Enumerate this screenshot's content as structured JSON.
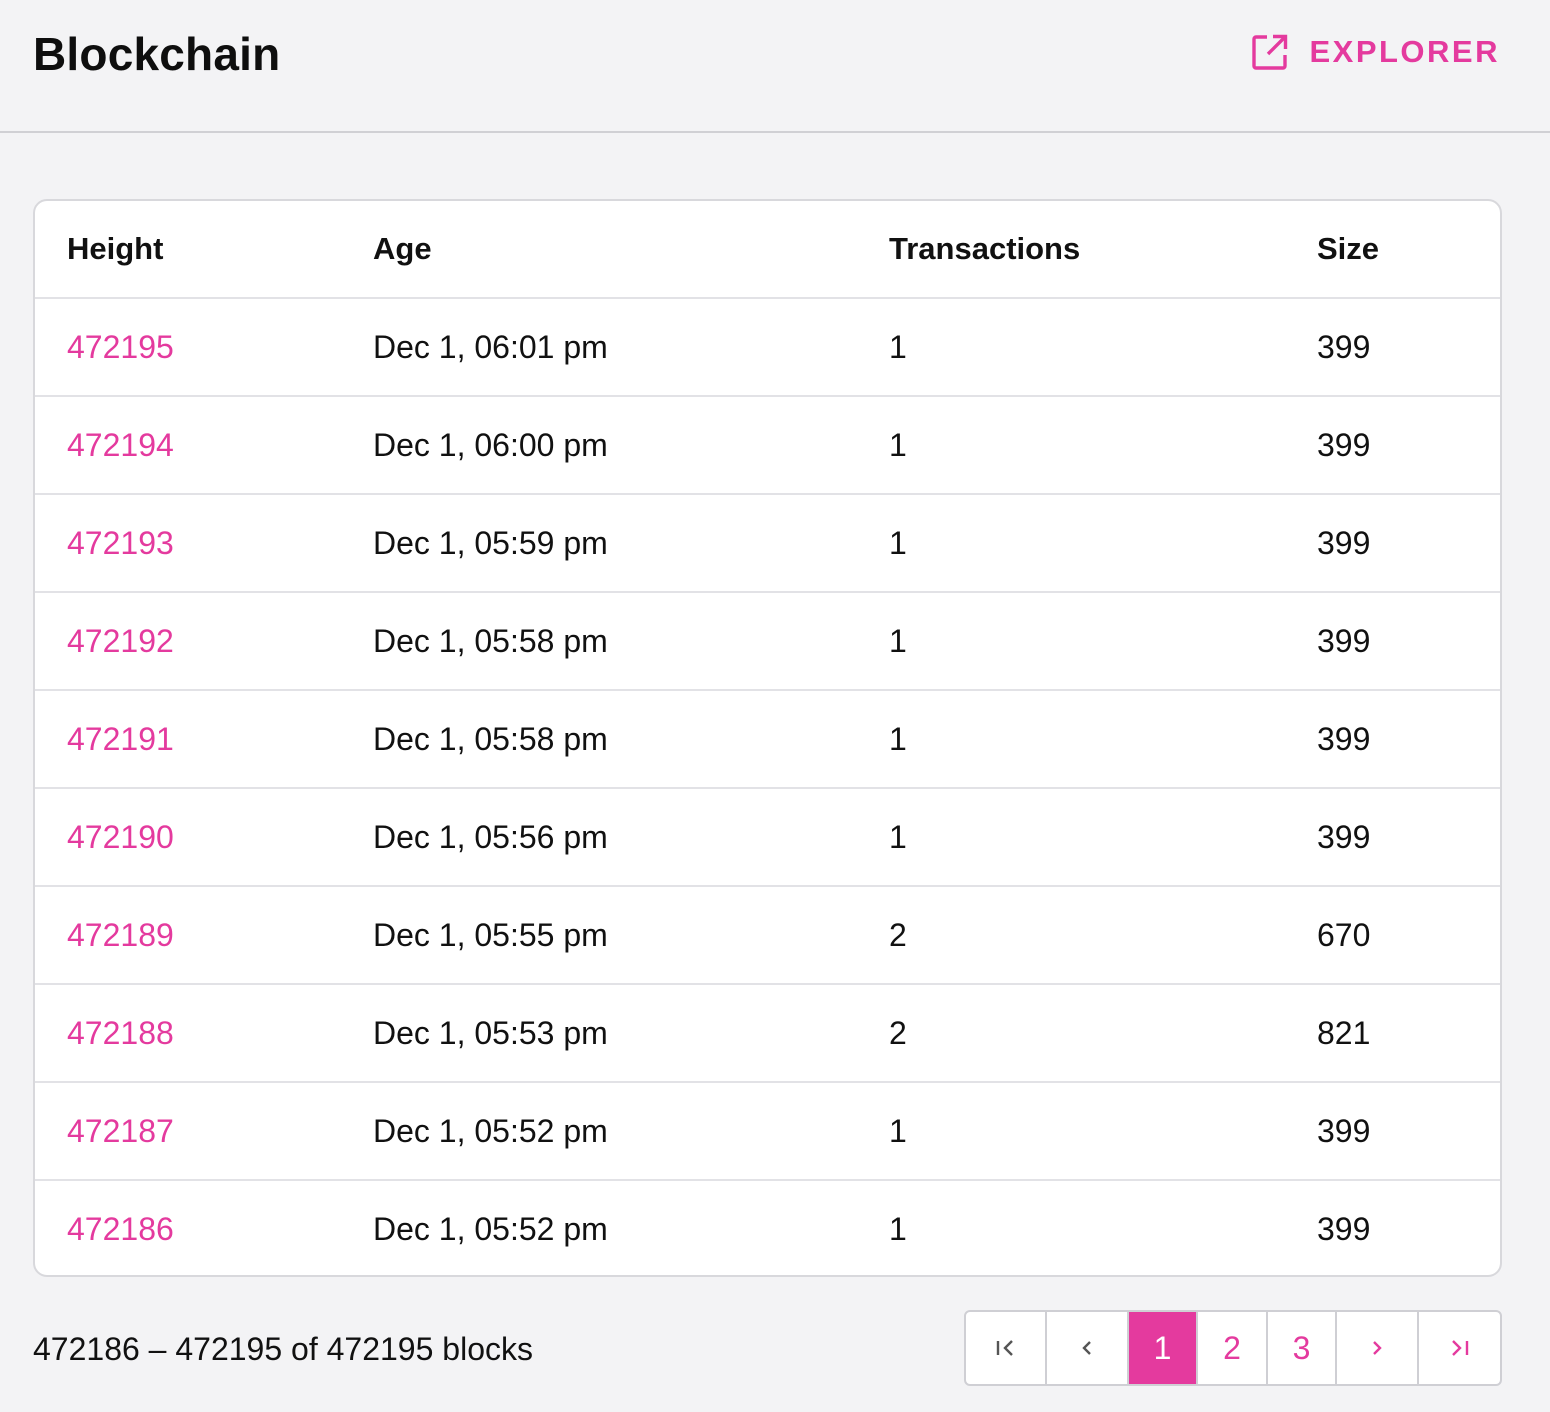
{
  "header": {
    "title": "Blockchain",
    "explorer_label": "EXPLORER",
    "explorer_icon": "external-link-icon"
  },
  "table": {
    "columns": [
      "Height",
      "Age",
      "Transactions",
      "Size"
    ],
    "rows": [
      {
        "height": "472195",
        "age": "Dec 1, 06:01 pm",
        "transactions": "1",
        "size": "399"
      },
      {
        "height": "472194",
        "age": "Dec 1, 06:00 pm",
        "transactions": "1",
        "size": "399"
      },
      {
        "height": "472193",
        "age": "Dec 1, 05:59 pm",
        "transactions": "1",
        "size": "399"
      },
      {
        "height": "472192",
        "age": "Dec 1, 05:58 pm",
        "transactions": "1",
        "size": "399"
      },
      {
        "height": "472191",
        "age": "Dec 1, 05:58 pm",
        "transactions": "1",
        "size": "399"
      },
      {
        "height": "472190",
        "age": "Dec 1, 05:56 pm",
        "transactions": "1",
        "size": "399"
      },
      {
        "height": "472189",
        "age": "Dec 1, 05:55 pm",
        "transactions": "2",
        "size": "670"
      },
      {
        "height": "472188",
        "age": "Dec 1, 05:53 pm",
        "transactions": "2",
        "size": "821"
      },
      {
        "height": "472187",
        "age": "Dec 1, 05:52 pm",
        "transactions": "1",
        "size": "399"
      },
      {
        "height": "472186",
        "age": "Dec 1, 05:52 pm",
        "transactions": "1",
        "size": "399"
      }
    ]
  },
  "footer": {
    "range_text": "472186 – 472195 of 472195 blocks"
  },
  "pagination": {
    "pages": [
      "1",
      "2",
      "3"
    ],
    "current_page": "1",
    "icons": [
      "first-page-icon",
      "previous-page-icon",
      "next-page-icon",
      "last-page-icon"
    ]
  },
  "colors": {
    "accent": "#e43a9e",
    "background": "#f3f3f5",
    "card": "#ffffff",
    "border": "#d8d8dc"
  }
}
